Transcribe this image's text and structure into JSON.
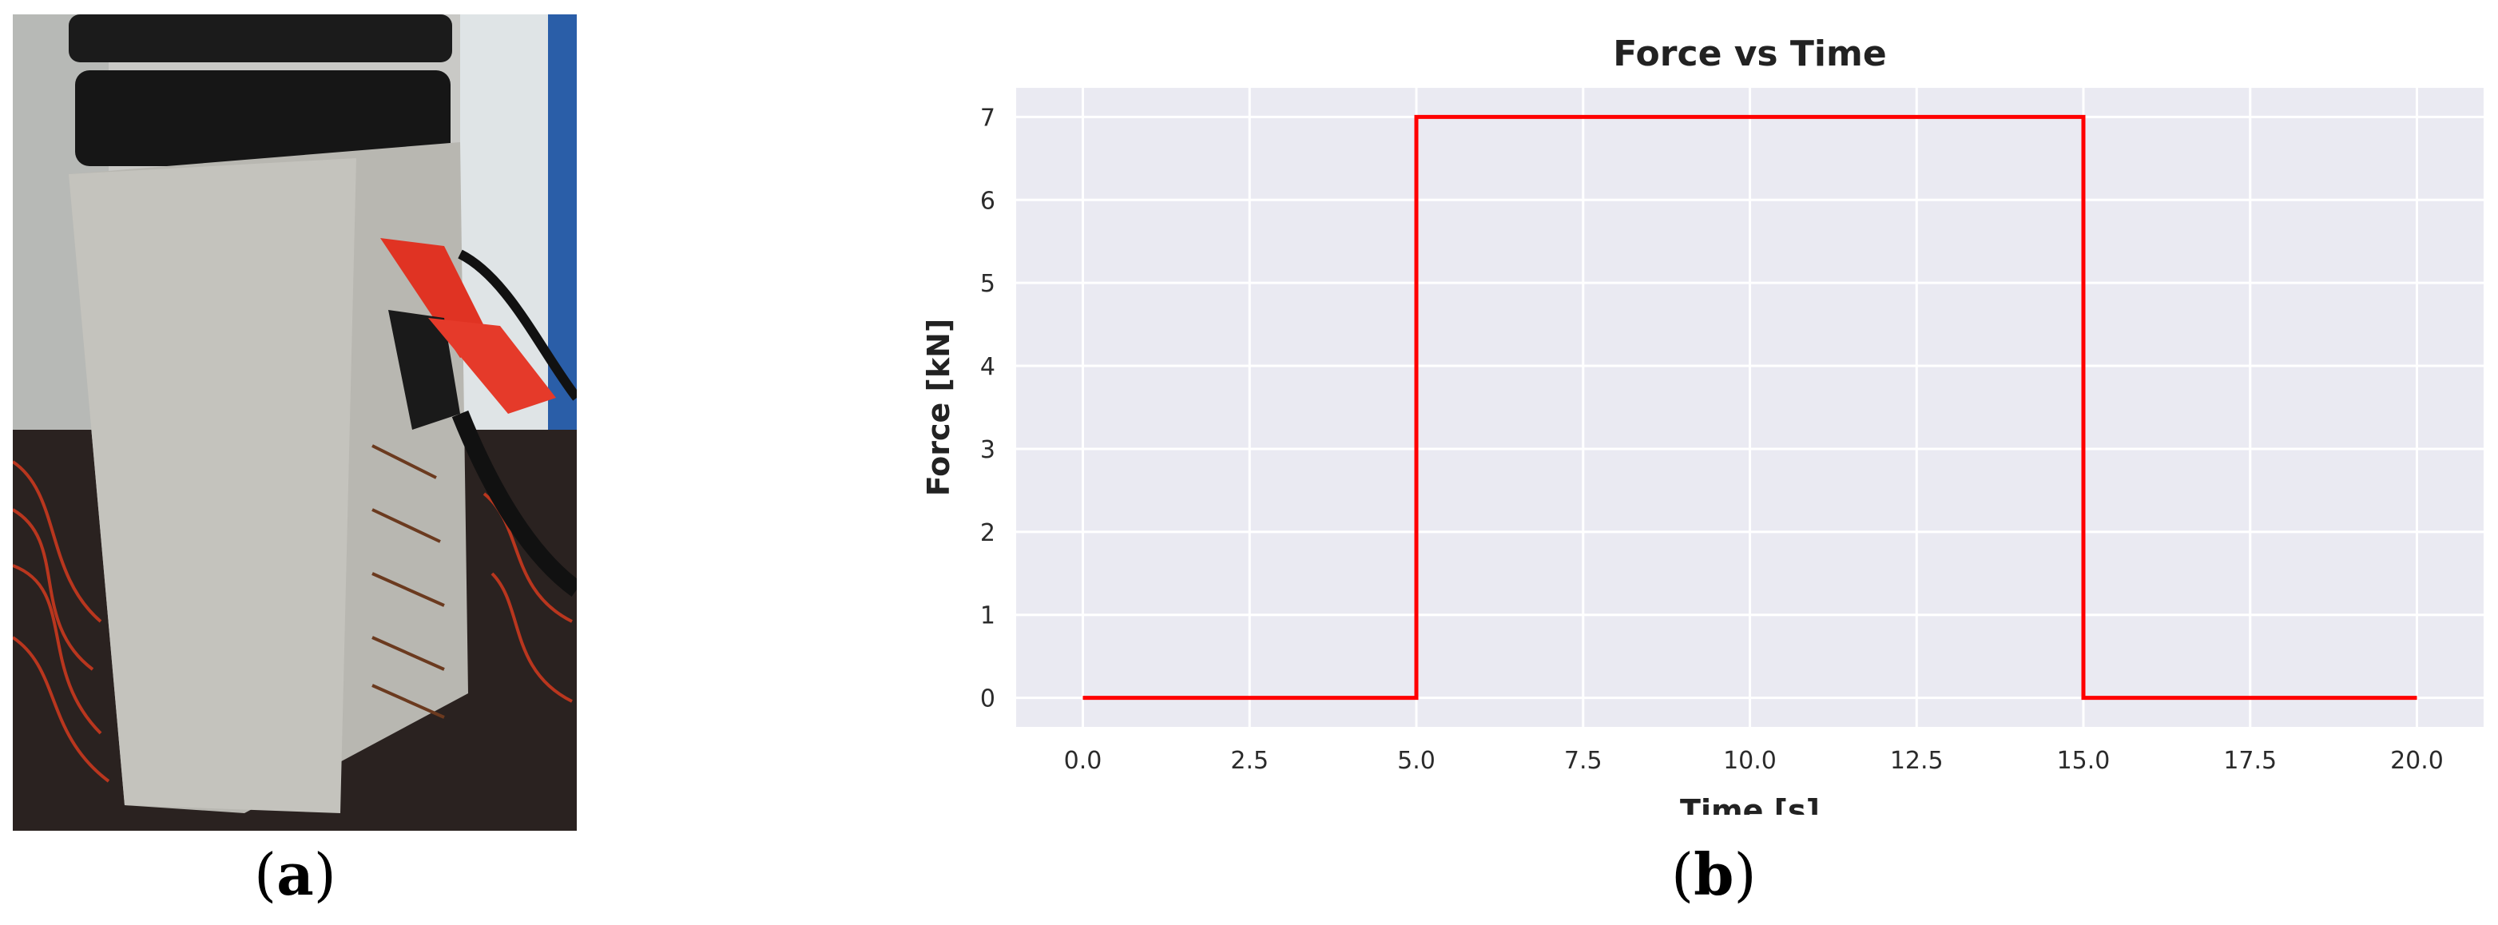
{
  "captions": {
    "a": "a",
    "b": "b"
  },
  "photo": {
    "description_icon": "photo-concrete-specimen-with-electrodes"
  },
  "chart_data": {
    "type": "line",
    "title": "Force vs Time",
    "xlabel": "Time [s]",
    "ylabel": "Force [kN]",
    "xlim": [
      -1,
      21
    ],
    "ylim": [
      -0.35,
      7.35
    ],
    "xticks": [
      0.0,
      2.5,
      5.0,
      7.5,
      10.0,
      12.5,
      15.0,
      17.5,
      20.0
    ],
    "xtick_labels": [
      "0.0",
      "2.5",
      "5.0",
      "7.5",
      "10.0",
      "12.5",
      "15.0",
      "17.5",
      "20.0"
    ],
    "yticks": [
      0,
      1,
      2,
      3,
      4,
      5,
      6,
      7
    ],
    "ytick_labels": [
      "0",
      "1",
      "2",
      "3",
      "4",
      "5",
      "6",
      "7"
    ],
    "grid": true,
    "series": [
      {
        "color": "#ff0000",
        "x": [
          0,
          5,
          5,
          15,
          15,
          20
        ],
        "y": [
          0,
          0,
          7,
          7,
          0,
          0
        ]
      }
    ]
  }
}
